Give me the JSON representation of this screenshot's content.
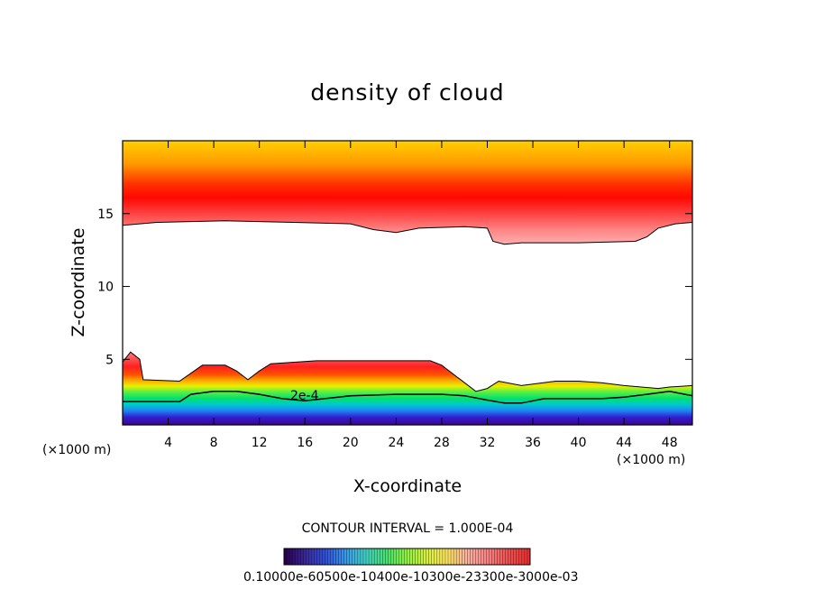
{
  "chart_data": {
    "type": "heatmap",
    "title": "density of cloud",
    "xlabel": "X-coordinate",
    "ylabel": "Z-coordinate",
    "x_unit_left": "(×1000 m)",
    "x_unit_right": "(×1000 m)",
    "xlim": [
      0,
      50
    ],
    "ylim": [
      0.5,
      20
    ],
    "x_ticks": [
      "4",
      "8",
      "12",
      "16",
      "20",
      "24",
      "28",
      "32",
      "36",
      "40",
      "44",
      "48"
    ],
    "x_tick_values": [
      4,
      8,
      12,
      16,
      20,
      24,
      28,
      32,
      36,
      40,
      44,
      48
    ],
    "y_ticks": [
      "5",
      "10",
      "15"
    ],
    "y_tick_values": [
      5,
      10,
      15
    ],
    "contour_label": "2e-4",
    "contour_interval_text": "CONTOUR INTERVAL = 1.000E-04",
    "colorbar": {
      "colors": [
        "#2a0050",
        "#3a2a9a",
        "#3050d8",
        "#3a9ae8",
        "#40d0c0",
        "#48e070",
        "#90f040",
        "#d8f040",
        "#f8e060",
        "#f8b0a0",
        "#f88080",
        "#f05050",
        "#e83030"
      ],
      "label_text": "0.10000e-60500e-10400e-10300e-23300e-3000e-03"
    },
    "upper_layer": {
      "bottom_z": [
        [
          0,
          14.2
        ],
        [
          3,
          14.4
        ],
        [
          9,
          14.5
        ],
        [
          15,
          14.4
        ],
        [
          20,
          14.3
        ],
        [
          22,
          13.9
        ],
        [
          24,
          13.7
        ],
        [
          26,
          14
        ],
        [
          30,
          14.1
        ],
        [
          32,
          14
        ],
        [
          32.5,
          13.1
        ],
        [
          33.5,
          12.9
        ],
        [
          35,
          13
        ],
        [
          40,
          13
        ],
        [
          45,
          13.1
        ],
        [
          46,
          13.4
        ],
        [
          47,
          14
        ],
        [
          48.5,
          14.3
        ],
        [
          50,
          14.4
        ]
      ]
    },
    "lower_layer": {
      "top_z": [
        [
          0,
          4.8
        ],
        [
          0.7,
          5.5
        ],
        [
          1.5,
          5
        ],
        [
          1.8,
          3.6
        ],
        [
          5,
          3.5
        ],
        [
          7,
          4.6
        ],
        [
          9,
          4.6
        ],
        [
          10,
          4.2
        ],
        [
          11,
          3.6
        ],
        [
          12,
          4.2
        ],
        [
          13,
          4.7
        ],
        [
          17,
          4.9
        ],
        [
          20,
          4.9
        ],
        [
          24,
          4.9
        ],
        [
          27,
          4.9
        ],
        [
          28,
          4.6
        ],
        [
          30,
          3.4
        ],
        [
          31,
          2.8
        ],
        [
          32,
          3
        ],
        [
          33,
          3.5
        ],
        [
          35,
          3.2
        ],
        [
          38,
          3.5
        ],
        [
          40,
          3.5
        ],
        [
          42,
          3.4
        ],
        [
          44,
          3.2
        ],
        [
          47,
          3
        ],
        [
          48,
          3.1
        ],
        [
          50,
          3.2
        ]
      ],
      "contour_2e4_z": [
        [
          0,
          2.1
        ],
        [
          2,
          2.1
        ],
        [
          5,
          2.1
        ],
        [
          6,
          2.6
        ],
        [
          8,
          2.8
        ],
        [
          10,
          2.8
        ],
        [
          12,
          2.6
        ],
        [
          14,
          2.3
        ],
        [
          16,
          2.15
        ],
        [
          20,
          2.5
        ],
        [
          24,
          2.6
        ],
        [
          28,
          2.6
        ],
        [
          30,
          2.5
        ],
        [
          32,
          2.2
        ],
        [
          33.5,
          2
        ],
        [
          35,
          2
        ],
        [
          37,
          2.3
        ],
        [
          40,
          2.3
        ],
        [
          42,
          2.3
        ],
        [
          44,
          2.4
        ],
        [
          46,
          2.6
        ],
        [
          48,
          2.8
        ],
        [
          50,
          2.5
        ]
      ]
    }
  }
}
